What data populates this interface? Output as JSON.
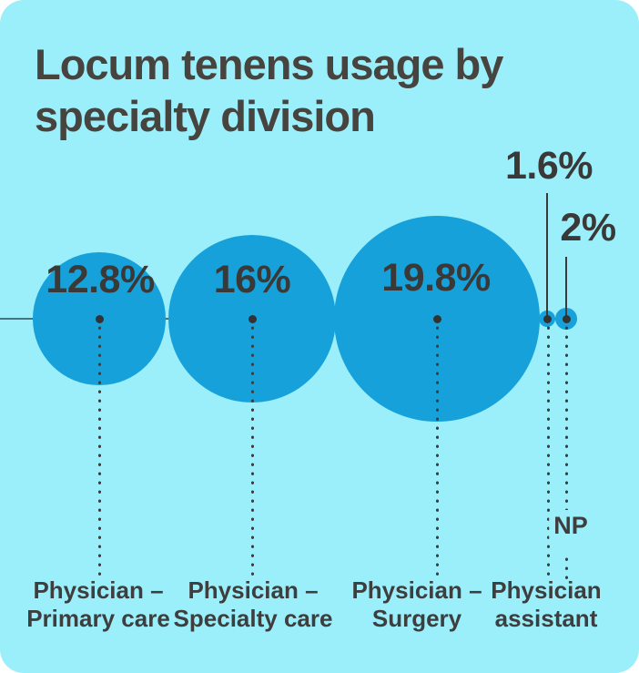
{
  "header": {
    "title_lines": [
      "Locum tenens usage by",
      "specialty division"
    ]
  },
  "chart_data": {
    "type": "bubble",
    "title": "Locum tenens usage by specialty division",
    "unit": "percent",
    "layout": {
      "background_color": "#9AEFFB",
      "bubble_color": "#17A1DA",
      "text_color": "#3E3C3A",
      "axis_line_color": "#2E5560",
      "bubbles_aligned_on_horizontal_axis": true,
      "bubble_radius_proportional_to_value": true,
      "grid": false,
      "legend": false
    },
    "points": [
      {
        "display": "12.8%",
        "value": 12.8,
        "label": "Physician – Primary care",
        "label_lines": [
          "Physician –",
          "Primary care"
        ]
      },
      {
        "display": "16%",
        "value": 16,
        "label": "Physician – Specialty care",
        "label_lines": [
          "Physician –",
          "Specialty care"
        ]
      },
      {
        "display": "19.8%",
        "value": 19.8,
        "label": "Physician – Surgery",
        "label_lines": [
          "Physician –",
          "Surgery"
        ]
      },
      {
        "display": "1.6%",
        "value": 1.6,
        "label": "Physician assistant",
        "label_lines": [
          "Physician",
          "assistant"
        ]
      },
      {
        "display": "2%",
        "value": 2,
        "label": "NP",
        "label_lines": [
          "NP"
        ]
      }
    ]
  }
}
